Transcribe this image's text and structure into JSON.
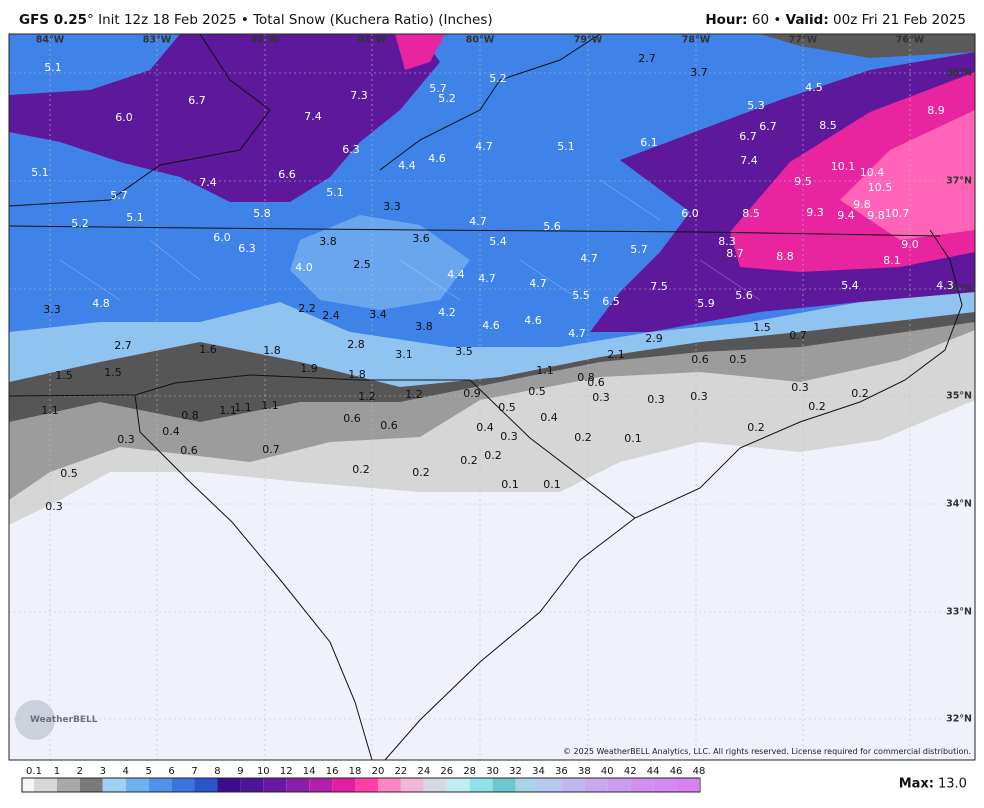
{
  "header": {
    "model": "GFS 0.25",
    "details": "° Init 12z 18 Feb 2025 • Total Snow (Kuchera Ratio) (Inches)",
    "hour_label": "Hour:",
    "hour": "60 •",
    "valid_label": "Valid:",
    "valid": "00z Fri 21 Feb 2025"
  },
  "map": {
    "lon_labels": [
      "84°W",
      "83°W",
      "82°W",
      "81°W",
      "80°W",
      "79°W",
      "78°W",
      "77°W",
      "76°W"
    ],
    "lat_labels": [
      "38°N",
      "37°N",
      "36°N",
      "35°N",
      "34°N",
      "33°N",
      "32°N"
    ],
    "snow_labels": [
      "5.1",
      "6.7",
      "6.0",
      "7.3",
      "7.4",
      "5.7",
      "5.2",
      "5.2",
      "2.7",
      "3.7",
      "4.5",
      "5.3",
      "6.7",
      "6.7",
      "8.5",
      "8.9",
      "6.3",
      "4.7",
      "4.6",
      "4.4",
      "5.1",
      "6.1",
      "5.1",
      "7.4",
      "6.6",
      "5.7",
      "5.1",
      "7.4",
      "9.5",
      "10.1",
      "10.4",
      "10.5",
      "9.8",
      "9.3",
      "9.4",
      "9.8",
      "10.7",
      "3.3",
      "5.8",
      "5.1",
      "5.2",
      "4.7",
      "5.6",
      "6.0",
      "8.5",
      "6.0",
      "6.3",
      "3.8",
      "3.6",
      "5.4",
      "8.3",
      "9.0",
      "8.7",
      "8.8",
      "5.7",
      "4.7",
      "4.0",
      "2.5",
      "8.1",
      "4.4",
      "4.7",
      "4.7",
      "7.5",
      "5.4",
      "4.3",
      "3.3",
      "4.8",
      "5.5",
      "6.5",
      "5.9",
      "5.6",
      "2.2",
      "2.4",
      "3.4",
      "4.2",
      "3.8",
      "4.6",
      "4.6",
      "1.5",
      "4.7",
      "0.7",
      "2.7",
      "1.6",
      "2.8",
      "2.9",
      "1.8",
      "3.1",
      "3.5",
      "2.1",
      "0.6",
      "0.5",
      "1.5",
      "1.5",
      "1.9",
      "1.8",
      "1.1",
      "0.8",
      "0.6",
      "0.3",
      "1.2",
      "1.2",
      "0.9",
      "0.5",
      "0.3",
      "0.3",
      "0.3",
      "0.2",
      "0.5",
      "0.2",
      "1.1",
      "0.8",
      "1.1",
      "1.1",
      "1.1",
      "0.6",
      "0.6",
      "0.4",
      "0.4",
      "0.2",
      "0.4",
      "0.3",
      "0.3",
      "0.2",
      "0.1",
      "0.6",
      "0.7",
      "0.2",
      "0.2",
      "0.5",
      "0.2",
      "0.2",
      "0.1",
      "0.1",
      "0.3"
    ],
    "logo": "WeatherBELL",
    "copyright": "© 2025 WeatherBELL Analytics, LLC. All rights reserved. License required for commercial distribution."
  },
  "legend": {
    "labels": [
      "0.1",
      "1",
      "2",
      "3",
      "4",
      "5",
      "6",
      "7",
      "8",
      "9",
      "10",
      "12",
      "14",
      "16",
      "18",
      "20",
      "22",
      "24",
      "26",
      "28",
      "30",
      "32",
      "34",
      "36",
      "38",
      "40",
      "42",
      "44",
      "46",
      "48"
    ],
    "max_label": "Max:",
    "max": "13.0"
  }
}
